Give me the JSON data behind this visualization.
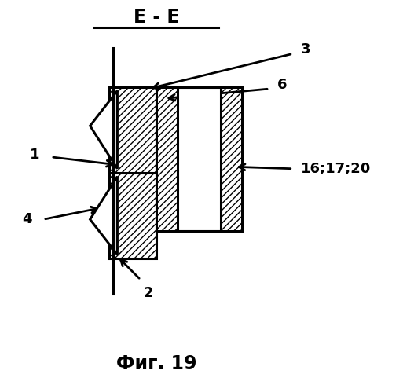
{
  "title": "Е - Е",
  "caption": "Фиг. 19",
  "bg_color": "#ffffff",
  "line_color": "#000000",
  "title_fontsize": 17,
  "caption_fontsize": 17,
  "label_fontsize": 13
}
